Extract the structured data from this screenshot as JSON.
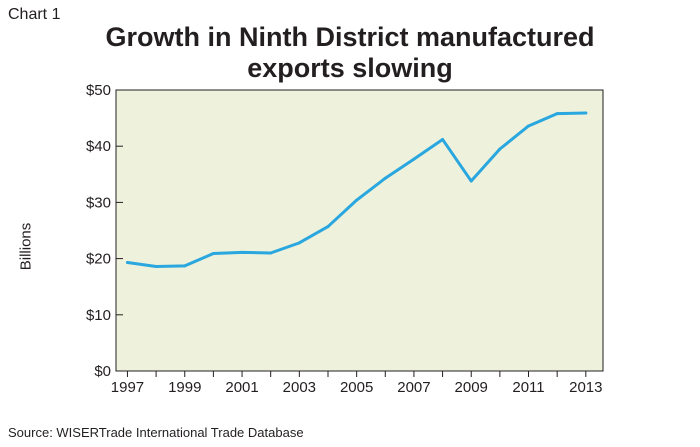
{
  "chart_label": "Chart 1",
  "source": "Source: WISERTrade International Trade Database",
  "colors": {
    "plot_background": "#eef1dc",
    "line": "#2aa7df",
    "axis": "#231f20"
  },
  "chart_data": {
    "type": "line",
    "title": "Growth in Ninth District manufactured exports slowing",
    "title_lines": [
      "Growth in Ninth District manufactured",
      "exports slowing"
    ],
    "xlabel": "",
    "ylabel": "Billions",
    "x": [
      1997,
      1998,
      1999,
      2000,
      2001,
      2002,
      2003,
      2004,
      2005,
      2006,
      2007,
      2008,
      2009,
      2010,
      2011,
      2012,
      2013
    ],
    "series": [
      {
        "values": [
          19.3,
          18.6,
          18.7,
          20.9,
          21.1,
          21.0,
          22.8,
          25.7,
          30.4,
          34.3,
          37.7,
          41.2,
          33.8,
          39.5,
          43.6,
          45.8,
          45.9
        ]
      }
    ],
    "xticks": [
      "1997",
      "1999",
      "2001",
      "2003",
      "2005",
      "2007",
      "2009",
      "2011",
      "2013"
    ],
    "xtick_values": [
      1997,
      1999,
      2001,
      2003,
      2005,
      2007,
      2009,
      2011,
      2013
    ],
    "yticks": [
      "$0",
      "$10",
      "$20",
      "$30",
      "$40",
      "$50"
    ],
    "ytick_values": [
      0,
      10,
      20,
      30,
      40,
      50
    ],
    "xlim": [
      1996.6,
      2013.6
    ],
    "ylim": [
      0,
      50
    ],
    "grid": false,
    "legend": "none"
  }
}
